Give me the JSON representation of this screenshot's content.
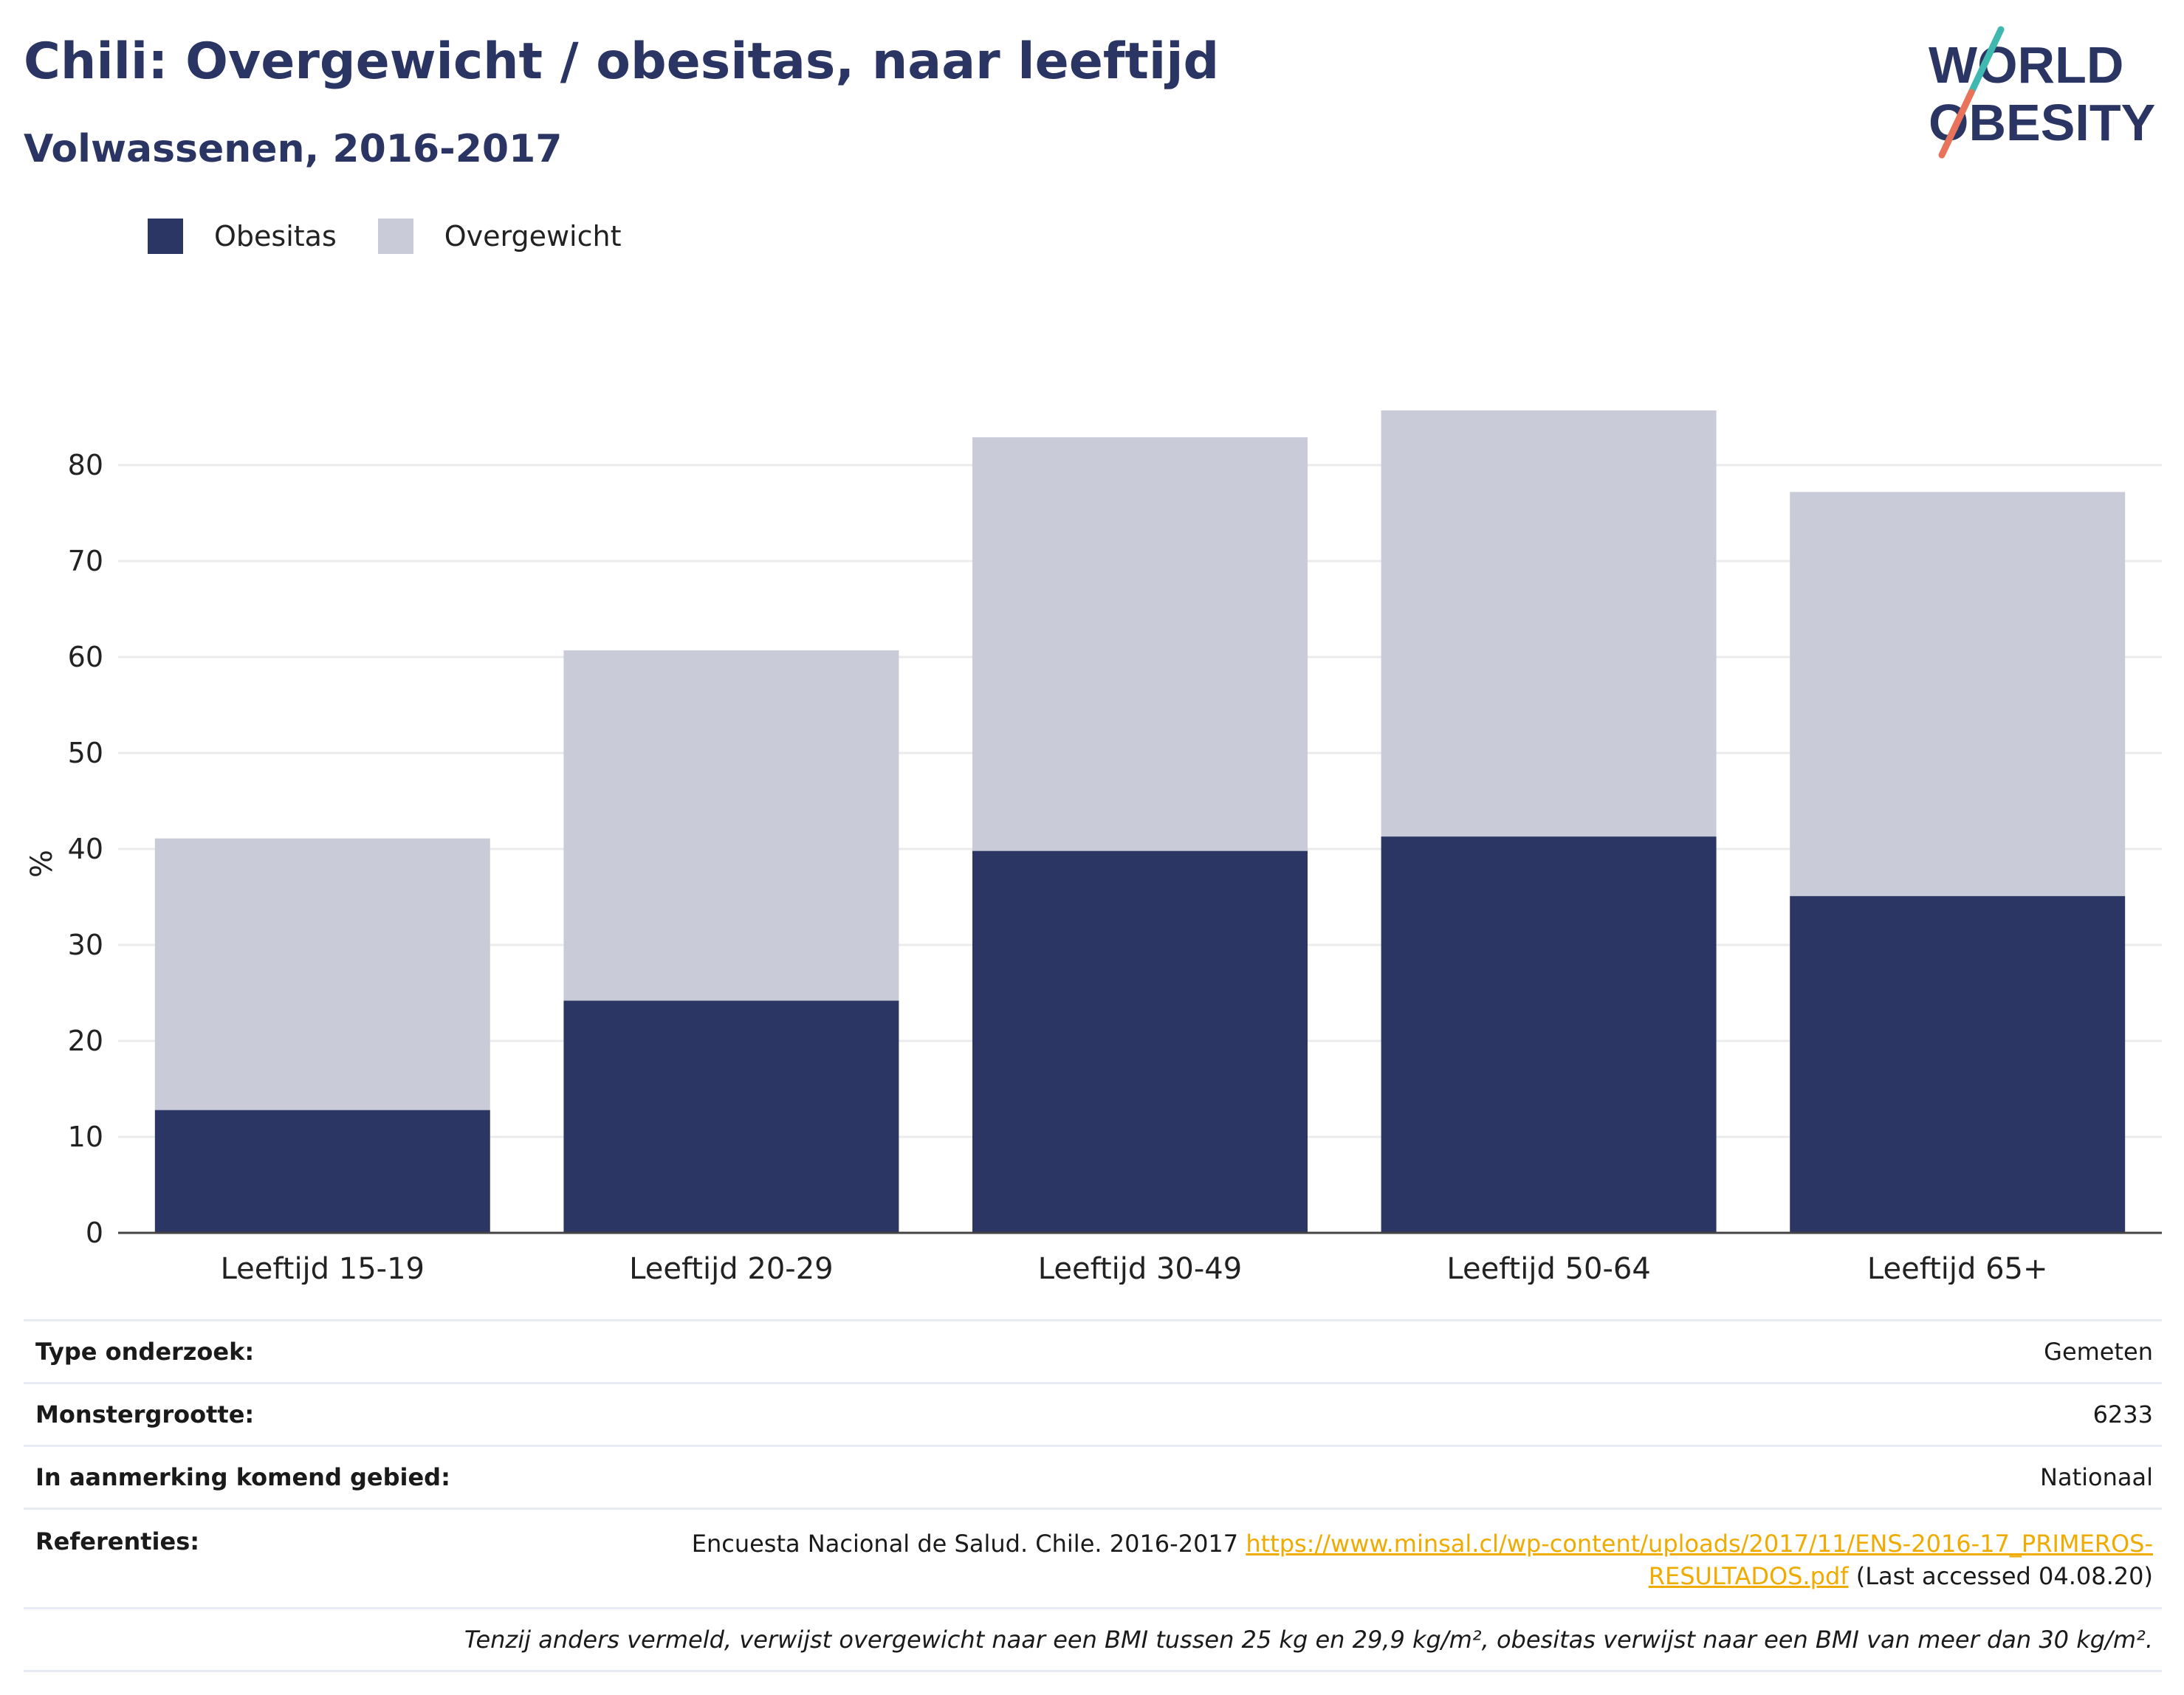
{
  "title": "Chili: Overgewicht / obesitas, naar leeftijd",
  "subtitle": "Volwassenen, 2016-2017",
  "logo": {
    "line1": "WORLD",
    "line2": "OBESITY"
  },
  "colors": {
    "obesitas": "#2b3664",
    "overgewicht": "#c9ccd8",
    "title": "#2a3563",
    "link": "#f0ab00"
  },
  "chart_data": {
    "type": "bar",
    "stacked": true,
    "categories": [
      "Leeftijd 15-19",
      "Leeftijd 20-29",
      "Leeftijd 30-49",
      "Leeftijd 50-64",
      "Leeftijd 65+"
    ],
    "series": [
      {
        "name": "Obesitas",
        "values": [
          12.8,
          24.2,
          39.8,
          41.3,
          35.1
        ]
      },
      {
        "name": "Overgewicht",
        "values": [
          28.3,
          36.5,
          43.1,
          44.4,
          42.1
        ]
      }
    ],
    "ylabel": "%",
    "yticks": [
      0,
      10,
      20,
      30,
      40,
      50,
      60,
      70,
      80
    ],
    "ylim": [
      0,
      90
    ],
    "grid": true,
    "legend": "top-left"
  },
  "info": {
    "rows": [
      {
        "key": "Type onderzoek:",
        "value": "Gemeten"
      },
      {
        "key": "Monstergrootte:",
        "value": "6233"
      },
      {
        "key": "In aanmerking komend gebied:",
        "value": "Nationaal"
      }
    ],
    "references": {
      "key": "Referenties:",
      "text": "Encuesta Nacional de Salud. Chile. 2016-2017",
      "link_line1": "https://www.minsal.cl/wp-content/uploads/2017/11/ENS-2016-17_PRIMEROS-",
      "link_line2": "RESULTADOS.pdf",
      "accessed": "(Last accessed 04.08.20)"
    },
    "note": "Tenzij anders vermeld, verwijst overgewicht naar een BMI tussen 25 kg en 29,9 kg/m², obesitas verwijst naar een BMI van meer dan 30 kg/m²."
  }
}
